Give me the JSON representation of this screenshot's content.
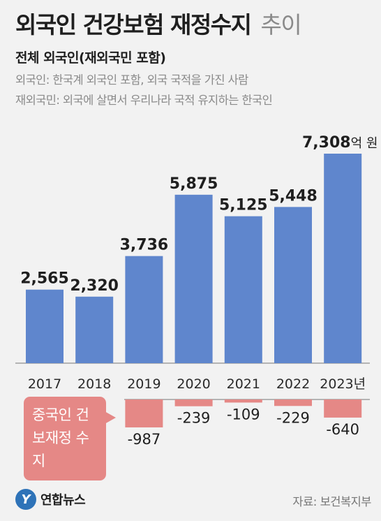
{
  "header": {
    "title": "외국인 건강보험 재정수지",
    "title_suffix": "추이",
    "subtitle": "전체 외국인(재외국민 포함)",
    "note1": "외국인: 한국계 외국인 포함, 외국 국적을 가진 사람",
    "note2": "재외국민: 외국에 살면서 우리나라 국적 유지하는 한국인"
  },
  "legend": {
    "label": "중국인 건보재정 수지",
    "color": "#e58886"
  },
  "logo": {
    "mark": "Y",
    "text": "연합뉴스"
  },
  "source": "자료: 보건복지부",
  "chart_data": [
    {
      "type": "bar",
      "categories": [
        "2017",
        "2018",
        "2019",
        "2020",
        "2021",
        "2022",
        "2023"
      ],
      "category_labels": [
        "2017",
        "2018",
        "2019",
        "2020",
        "2021",
        "2022",
        "2023년"
      ],
      "values": [
        2565,
        2320,
        3736,
        5875,
        5125,
        5448,
        7308
      ],
      "value_labels": [
        "2,565",
        "2,320",
        "3,736",
        "5,875",
        "5,125",
        "5,448",
        "7,308"
      ],
      "unit": "억 원",
      "color": "#5f86cd"
    },
    {
      "type": "bar",
      "categories": [
        "2019",
        "2020",
        "2021",
        "2022",
        "2023"
      ],
      "values": [
        -987,
        -239,
        -109,
        -229,
        -640
      ],
      "value_labels": [
        "-987",
        "-239",
        "-109",
        "-229",
        "-640"
      ],
      "color": "#e58886"
    }
  ]
}
